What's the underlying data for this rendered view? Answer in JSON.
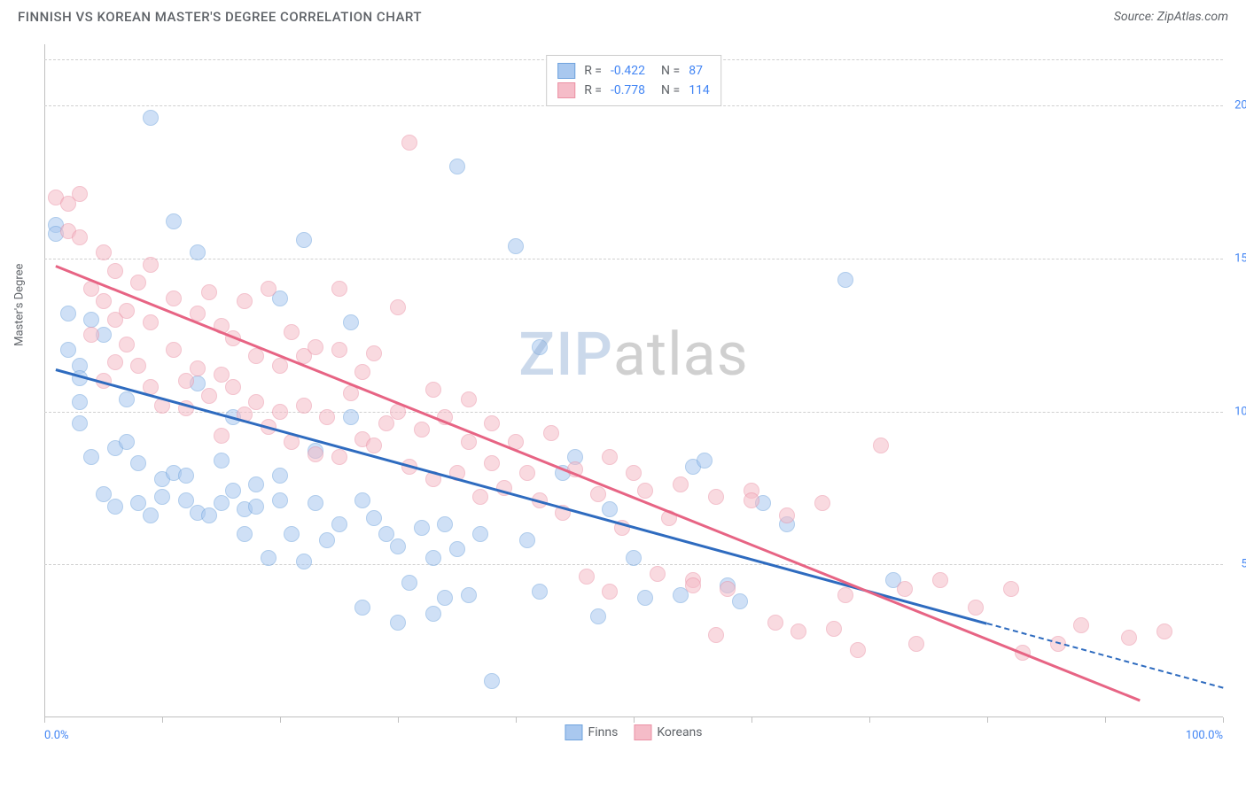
{
  "header": {
    "title": "FINNISH VS KOREAN MASTER'S DEGREE CORRELATION CHART",
    "source_label": "Source: ",
    "source_name": "ZipAtlas.com"
  },
  "chart": {
    "type": "scatter",
    "y_label": "Master's Degree",
    "background_color": "#ffffff",
    "grid_color": "#d0d0d0",
    "axis_color": "#c0c0c0",
    "tick_label_color": "#4285f4",
    "label_color": "#5f6368",
    "xlim": [
      0,
      100
    ],
    "ylim": [
      0,
      22
    ],
    "x_ticks": [
      0,
      10,
      20,
      30,
      40,
      50,
      60,
      70,
      80,
      90,
      100
    ],
    "x_tick_labels": {
      "0": "0.0%",
      "100": "100.0%"
    },
    "y_gridlines": [
      5,
      10,
      15,
      20
    ],
    "y_tick_labels": {
      "5": "5.0%",
      "10": "10.0%",
      "15": "15.0%",
      "20": "20.0%"
    },
    "marker_radius": 9,
    "marker_opacity": 0.55,
    "line_width": 2.5,
    "series": [
      {
        "name": "Finns",
        "color_fill": "#a9c8ef",
        "color_stroke": "#6fa3dd",
        "line_color": "#2e6bbf",
        "R": "-0.422",
        "N": "87",
        "trend": {
          "x1": 1,
          "y1": 11.4,
          "x2": 80,
          "y2": 3.1,
          "dash_x2": 100,
          "dash_y2": 1.0
        },
        "points": [
          [
            1,
            16.1
          ],
          [
            1,
            15.8
          ],
          [
            2,
            13.2
          ],
          [
            2,
            12.0
          ],
          [
            3,
            11.5
          ],
          [
            3,
            11.1
          ],
          [
            3,
            10.3
          ],
          [
            3,
            9.6
          ],
          [
            4,
            13.0
          ],
          [
            4,
            8.5
          ],
          [
            5,
            12.5
          ],
          [
            5,
            7.3
          ],
          [
            6,
            8.8
          ],
          [
            6,
            6.9
          ],
          [
            7,
            10.4
          ],
          [
            7,
            9.0
          ],
          [
            8,
            8.3
          ],
          [
            8,
            7.0
          ],
          [
            9,
            19.6
          ],
          [
            9,
            6.6
          ],
          [
            10,
            7.8
          ],
          [
            10,
            7.2
          ],
          [
            11,
            16.2
          ],
          [
            11,
            8.0
          ],
          [
            12,
            7.9
          ],
          [
            12,
            7.1
          ],
          [
            13,
            10.9
          ],
          [
            13,
            15.2
          ],
          [
            13,
            6.7
          ],
          [
            14,
            6.6
          ],
          [
            15,
            8.4
          ],
          [
            15,
            7.0
          ],
          [
            16,
            9.8
          ],
          [
            16,
            7.4
          ],
          [
            17,
            6.8
          ],
          [
            17,
            6.0
          ],
          [
            18,
            7.6
          ],
          [
            18,
            6.9
          ],
          [
            19,
            5.2
          ],
          [
            20,
            13.7
          ],
          [
            20,
            7.9
          ],
          [
            20,
            7.1
          ],
          [
            21,
            6.0
          ],
          [
            22,
            15.6
          ],
          [
            22,
            5.1
          ],
          [
            23,
            8.7
          ],
          [
            23,
            7.0
          ],
          [
            24,
            5.8
          ],
          [
            25,
            6.3
          ],
          [
            26,
            12.9
          ],
          [
            26,
            9.8
          ],
          [
            27,
            7.1
          ],
          [
            27,
            3.6
          ],
          [
            28,
            6.5
          ],
          [
            29,
            6.0
          ],
          [
            30,
            5.6
          ],
          [
            30,
            3.1
          ],
          [
            31,
            4.4
          ],
          [
            32,
            6.2
          ],
          [
            33,
            5.2
          ],
          [
            33,
            3.4
          ],
          [
            34,
            6.3
          ],
          [
            34,
            3.9
          ],
          [
            35,
            18.0
          ],
          [
            35,
            5.5
          ],
          [
            36,
            4.0
          ],
          [
            37,
            6.0
          ],
          [
            38,
            1.2
          ],
          [
            40,
            15.4
          ],
          [
            41,
            5.8
          ],
          [
            42,
            12.1
          ],
          [
            42,
            4.1
          ],
          [
            44,
            8.0
          ],
          [
            45,
            8.5
          ],
          [
            47,
            3.3
          ],
          [
            48,
            6.8
          ],
          [
            50,
            5.2
          ],
          [
            51,
            3.9
          ],
          [
            54,
            4.0
          ],
          [
            55,
            8.2
          ],
          [
            56,
            8.4
          ],
          [
            58,
            4.3
          ],
          [
            59,
            3.8
          ],
          [
            61,
            7.0
          ],
          [
            63,
            6.3
          ],
          [
            68,
            14.3
          ],
          [
            72,
            4.5
          ]
        ]
      },
      {
        "name": "Koreans",
        "color_fill": "#f5bcc8",
        "color_stroke": "#eb91a5",
        "line_color": "#e76484",
        "R": "-0.778",
        "N": "114",
        "trend": {
          "x1": 1,
          "y1": 14.8,
          "x2": 93,
          "y2": 0.6
        },
        "points": [
          [
            1,
            17.0
          ],
          [
            2,
            16.8
          ],
          [
            2,
            15.9
          ],
          [
            3,
            17.1
          ],
          [
            3,
            15.7
          ],
          [
            4,
            14.0
          ],
          [
            4,
            12.5
          ],
          [
            5,
            15.2
          ],
          [
            5,
            13.6
          ],
          [
            5,
            11.0
          ],
          [
            6,
            14.6
          ],
          [
            6,
            13.0
          ],
          [
            6,
            11.6
          ],
          [
            7,
            13.3
          ],
          [
            7,
            12.2
          ],
          [
            8,
            14.2
          ],
          [
            8,
            11.5
          ],
          [
            9,
            14.8
          ],
          [
            9,
            12.9
          ],
          [
            9,
            10.8
          ],
          [
            10,
            10.2
          ],
          [
            11,
            13.7
          ],
          [
            11,
            12.0
          ],
          [
            12,
            11.0
          ],
          [
            12,
            10.1
          ],
          [
            13,
            13.2
          ],
          [
            13,
            11.4
          ],
          [
            14,
            13.9
          ],
          [
            14,
            10.5
          ],
          [
            15,
            12.8
          ],
          [
            15,
            11.2
          ],
          [
            15,
            9.2
          ],
          [
            16,
            12.4
          ],
          [
            16,
            10.8
          ],
          [
            17,
            13.6
          ],
          [
            17,
            9.9
          ],
          [
            18,
            11.8
          ],
          [
            18,
            10.3
          ],
          [
            19,
            14.0
          ],
          [
            19,
            9.5
          ],
          [
            20,
            11.5
          ],
          [
            20,
            10.0
          ],
          [
            21,
            12.6
          ],
          [
            21,
            9.0
          ],
          [
            22,
            11.8
          ],
          [
            22,
            10.2
          ],
          [
            23,
            12.1
          ],
          [
            23,
            8.6
          ],
          [
            24,
            9.8
          ],
          [
            25,
            14.0
          ],
          [
            25,
            12.0
          ],
          [
            25,
            8.5
          ],
          [
            26,
            10.6
          ],
          [
            27,
            11.3
          ],
          [
            27,
            9.1
          ],
          [
            28,
            11.9
          ],
          [
            28,
            8.9
          ],
          [
            29,
            9.6
          ],
          [
            30,
            13.4
          ],
          [
            30,
            10.0
          ],
          [
            31,
            18.8
          ],
          [
            31,
            8.2
          ],
          [
            32,
            9.4
          ],
          [
            33,
            10.7
          ],
          [
            33,
            7.8
          ],
          [
            34,
            9.8
          ],
          [
            35,
            8.0
          ],
          [
            36,
            10.4
          ],
          [
            36,
            9.0
          ],
          [
            37,
            7.2
          ],
          [
            38,
            9.6
          ],
          [
            38,
            8.3
          ],
          [
            39,
            7.5
          ],
          [
            40,
            9.0
          ],
          [
            41,
            8.0
          ],
          [
            42,
            7.1
          ],
          [
            43,
            9.3
          ],
          [
            44,
            6.7
          ],
          [
            45,
            8.1
          ],
          [
            46,
            4.6
          ],
          [
            47,
            7.3
          ],
          [
            48,
            8.5
          ],
          [
            48,
            4.1
          ],
          [
            49,
            6.2
          ],
          [
            50,
            8.0
          ],
          [
            51,
            7.4
          ],
          [
            52,
            4.7
          ],
          [
            53,
            6.5
          ],
          [
            54,
            7.6
          ],
          [
            55,
            4.5
          ],
          [
            55,
            4.3
          ],
          [
            57,
            7.2
          ],
          [
            57,
            2.7
          ],
          [
            58,
            4.2
          ],
          [
            60,
            7.4
          ],
          [
            60,
            7.1
          ],
          [
            62,
            3.1
          ],
          [
            63,
            6.6
          ],
          [
            64,
            2.8
          ],
          [
            66,
            7.0
          ],
          [
            67,
            2.9
          ],
          [
            68,
            4.0
          ],
          [
            69,
            2.2
          ],
          [
            71,
            8.9
          ],
          [
            73,
            4.2
          ],
          [
            74,
            2.4
          ],
          [
            76,
            4.5
          ],
          [
            79,
            3.6
          ],
          [
            82,
            4.2
          ],
          [
            83,
            2.1
          ],
          [
            86,
            2.4
          ],
          [
            88,
            3.0
          ],
          [
            92,
            2.6
          ],
          [
            95,
            2.8
          ]
        ]
      }
    ],
    "legend_top": {
      "R_label": "R = ",
      "N_label": "N = "
    },
    "watermark": {
      "part1": "ZIP",
      "part2": "atlas"
    }
  }
}
